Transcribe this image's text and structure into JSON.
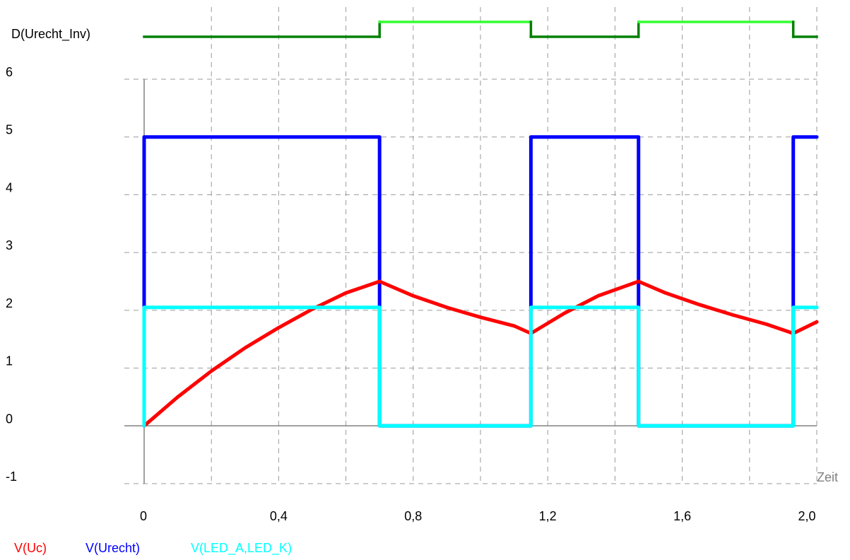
{
  "chart_data": {
    "type": "line",
    "title": "",
    "xlabel": "Zeit",
    "ylabel": "",
    "xlim": [
      0,
      2.0
    ],
    "ylim": [
      -1,
      6
    ],
    "grid": true,
    "legend_placement": "bottom-left",
    "x_ticks": [
      "0",
      "0,4",
      "0,8",
      "1,2",
      "1,6",
      "2,0"
    ],
    "x_tick_values": [
      0,
      0.4,
      0.8,
      1.2,
      1.6,
      2.0
    ],
    "y_ticks": [
      "-1",
      "0",
      "1",
      "2",
      "3",
      "4",
      "5",
      "6"
    ],
    "y_tick_values": [
      -1,
      0,
      1,
      2,
      3,
      4,
      5,
      6
    ],
    "digital_trace": {
      "name": "D(Urecht_Inv)",
      "color_low": "#008000",
      "color_high": "#33ff33",
      "points": [
        [
          0,
          0
        ],
        [
          0.7,
          0
        ],
        [
          0.7,
          1
        ],
        [
          1.15,
          1
        ],
        [
          1.15,
          0
        ],
        [
          1.47,
          0
        ],
        [
          1.47,
          1
        ],
        [
          1.93,
          1
        ],
        [
          1.93,
          0
        ],
        [
          2.0,
          0
        ]
      ]
    },
    "series": [
      {
        "name": "V(Urecht)",
        "color": "#0000ff",
        "points": [
          [
            0,
            0
          ],
          [
            0,
            5
          ],
          [
            0.7,
            5
          ],
          [
            0.7,
            0
          ],
          [
            1.15,
            0
          ],
          [
            1.15,
            5
          ],
          [
            1.47,
            5
          ],
          [
            1.47,
            0
          ],
          [
            1.93,
            0
          ],
          [
            1.93,
            5
          ],
          [
            2.0,
            5
          ]
        ]
      },
      {
        "name": "V(Uc)",
        "color": "#ff0000",
        "points": [
          [
            0,
            0
          ],
          [
            0.1,
            0.5
          ],
          [
            0.2,
            0.95
          ],
          [
            0.3,
            1.35
          ],
          [
            0.4,
            1.7
          ],
          [
            0.5,
            2.02
          ],
          [
            0.6,
            2.3
          ],
          [
            0.7,
            2.5
          ],
          [
            0.8,
            2.25
          ],
          [
            0.9,
            2.05
          ],
          [
            1.0,
            1.88
          ],
          [
            1.1,
            1.73
          ],
          [
            1.15,
            1.6
          ],
          [
            1.25,
            1.95
          ],
          [
            1.35,
            2.25
          ],
          [
            1.47,
            2.5
          ],
          [
            1.55,
            2.3
          ],
          [
            1.65,
            2.1
          ],
          [
            1.75,
            1.92
          ],
          [
            1.85,
            1.76
          ],
          [
            1.93,
            1.6
          ],
          [
            2.0,
            1.8
          ]
        ]
      },
      {
        "name": "V(LED_A,LED_K)",
        "color": "#00ffff",
        "points": [
          [
            0,
            0
          ],
          [
            0,
            2.05
          ],
          [
            0.7,
            2.05
          ],
          [
            0.7,
            0
          ],
          [
            1.15,
            0
          ],
          [
            1.15,
            2.05
          ],
          [
            1.47,
            2.05
          ],
          [
            1.47,
            0
          ],
          [
            1.93,
            0
          ],
          [
            1.93,
            2.05
          ],
          [
            2.0,
            2.05
          ]
        ]
      }
    ]
  }
}
